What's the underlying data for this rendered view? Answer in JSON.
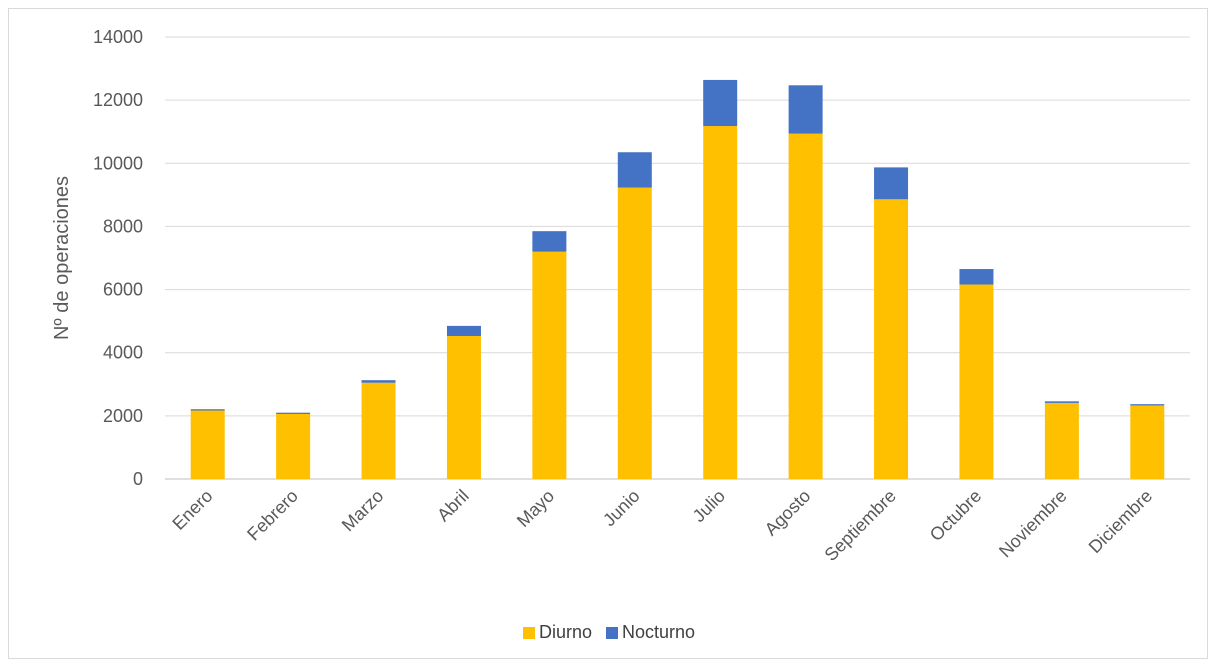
{
  "chart_data": {
    "type": "bar",
    "stacked": true,
    "categories": [
      "Enero",
      "Febrero",
      "Marzo",
      "Abril",
      "Mayo",
      "Junio",
      "Julio",
      "Agosto",
      "Septiembre",
      "Octubre",
      "Noviembre",
      "Diciembre"
    ],
    "series": [
      {
        "name": "Diurno",
        "color": "#ffc000",
        "values": [
          2170,
          2060,
          3050,
          4530,
          7200,
          9230,
          11180,
          10940,
          8860,
          6160,
          2410,
          2330
        ]
      },
      {
        "name": "Nocturno",
        "color": "#4472c4",
        "values": [
          40,
          40,
          80,
          320,
          650,
          1120,
          1460,
          1530,
          1010,
          490,
          50,
          40
        ]
      }
    ],
    "xlabel": "",
    "ylabel": "Nº de operaciones",
    "ylim": [
      0,
      14000
    ],
    "yticks": [
      0,
      2000,
      4000,
      6000,
      8000,
      10000,
      12000,
      14000
    ],
    "grid": true,
    "legend_position": "bottom"
  }
}
